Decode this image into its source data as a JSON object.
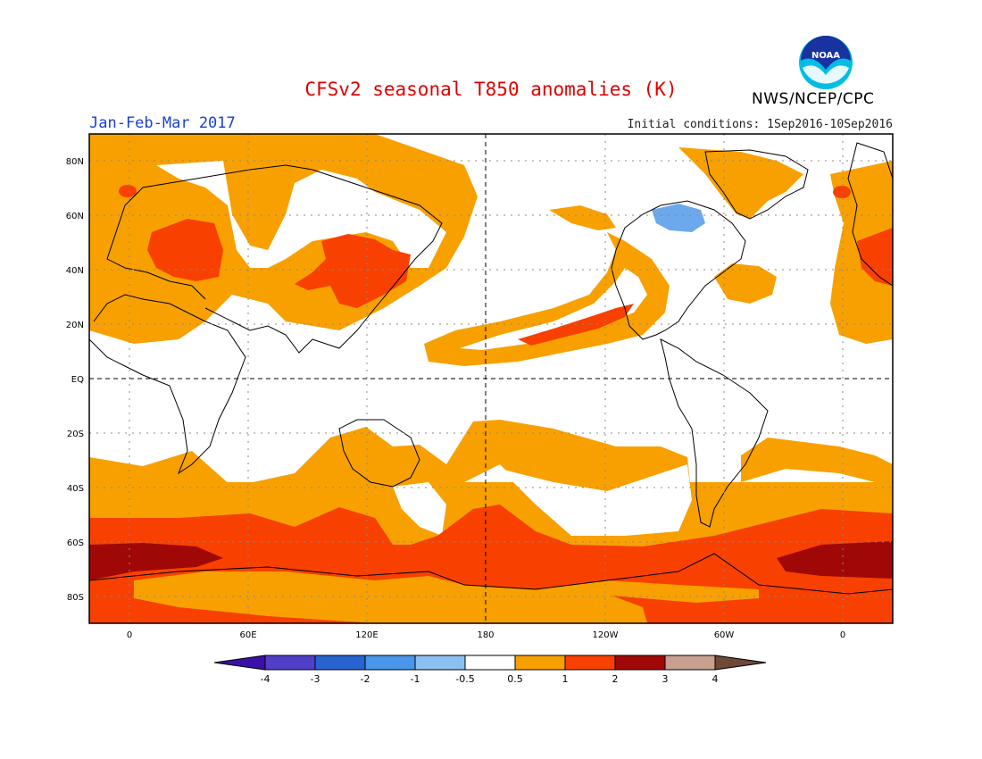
{
  "title": "CFSv2 seasonal T850 anomalies (K)",
  "period": "Jan-Feb-Mar 2017",
  "initial_conditions": "Initial conditions: 1Sep2016-10Sep2016",
  "agency": "NWS/NCEP/CPC",
  "logo_text": "NOAA",
  "lat_labels": [
    "80N",
    "60N",
    "40N",
    "20N",
    "EQ",
    "20S",
    "40S",
    "60S",
    "80S"
  ],
  "lon_labels": [
    "0",
    "60E",
    "120E",
    "180",
    "120W",
    "60W",
    "0"
  ],
  "colorbar": {
    "labels": [
      "-4",
      "-3",
      "-2",
      "-1",
      "-0.5",
      "0.5",
      "1",
      "2",
      "3",
      "4"
    ],
    "colors": [
      "#3a10a8",
      "#5040c8",
      "#2864d0",
      "#4a96e8",
      "#8cc0f0",
      "#ffffff",
      "#f8a000",
      "#f84000",
      "#a00808",
      "#c8a090",
      "#704838"
    ]
  },
  "colors": {
    "band_0p5_1": "#f8a000",
    "band_1_2": "#f84000",
    "band_2_3": "#a00808",
    "cold": "#6ca8ec"
  }
}
